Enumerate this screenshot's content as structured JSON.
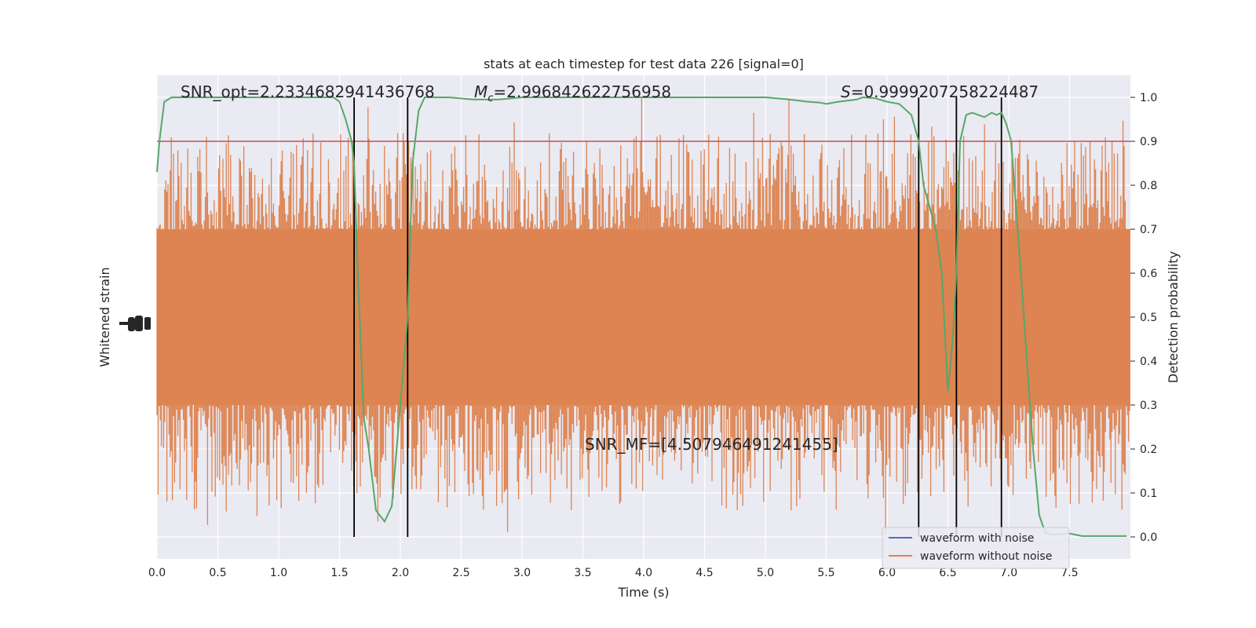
{
  "chart_data": {
    "type": "line",
    "title": "stats at each timestep for test data 226 [signal=0]",
    "xlabel": "Time (s)",
    "ylabel_left": "Whitened strain",
    "ylabel_right": "Detection probability",
    "xlim": [
      0.0,
      8.0
    ],
    "ylim_right": [
      -0.05,
      1.05
    ],
    "x_ticks": [
      "0.0",
      "0.5",
      "1.0",
      "1.5",
      "2.0",
      "2.5",
      "3.0",
      "3.5",
      "4.0",
      "4.5",
      "5.0",
      "5.5",
      "6.0",
      "6.5",
      "7.0",
      "7.5"
    ],
    "y_right_ticks": [
      "0.0",
      "0.1",
      "0.2",
      "0.3",
      "0.4",
      "0.5",
      "0.6",
      "0.7",
      "0.8",
      "0.9",
      "1.0"
    ],
    "grid": true,
    "legend": {
      "placement": "lower-right",
      "entries": [
        {
          "label": "waveform with noise",
          "color": "#4c72b0"
        },
        {
          "label": "waveform without noise",
          "color": "#dd8452"
        }
      ]
    },
    "annotations": {
      "snr_opt": "SNR_opt=2.2334682941436768",
      "mc_symbol": "M",
      "mc_sub": "c",
      "mc_value": "=2.996842622756958",
      "s_symbol": "S",
      "s_value": "=0.9999207258224487",
      "snr_mf": "SNR_MF=[4.507946491241455]"
    },
    "threshold": {
      "value": 0.9,
      "color": "#c44e52"
    },
    "vertical_lines_x": [
      1.62,
      2.06,
      6.26,
      6.57,
      6.94
    ],
    "series": [
      {
        "type": "noise-band",
        "color": "#dd8452",
        "core_range": [
          0.3,
          0.7
        ]
      },
      {
        "type": "line",
        "color": "#55a868",
        "x": [
          0.0,
          0.02,
          0.06,
          0.12,
          0.3,
          0.6,
          0.9,
          1.2,
          1.45,
          1.5,
          1.55,
          1.6,
          1.62,
          1.65,
          1.7,
          1.74,
          1.8,
          1.87,
          1.93,
          2.0,
          2.06,
          2.1,
          2.15,
          2.2,
          2.4,
          2.6,
          2.8,
          3.0,
          3.5,
          4.0,
          4.5,
          5.0,
          5.2,
          5.35,
          5.45,
          5.5,
          5.6,
          5.75,
          5.8,
          5.9,
          6.0,
          6.1,
          6.2,
          6.26,
          6.28,
          6.3,
          6.35,
          6.4,
          6.45,
          6.5,
          6.54,
          6.57,
          6.6,
          6.65,
          6.7,
          6.75,
          6.8,
          6.86,
          6.9,
          6.94,
          6.98,
          7.02,
          7.1,
          7.2,
          7.25,
          7.3,
          7.35,
          7.5,
          7.6,
          7.8,
          7.97
        ],
        "y": [
          0.83,
          0.9,
          0.99,
          1.0,
          1.0,
          1.0,
          1.0,
          1.0,
          1.0,
          0.99,
          0.95,
          0.9,
          0.85,
          0.6,
          0.27,
          0.2,
          0.06,
          0.035,
          0.07,
          0.3,
          0.5,
          0.85,
          0.97,
          1.0,
          1.0,
          0.995,
          0.995,
          1.0,
          1.0,
          1.0,
          1.0,
          1.0,
          0.995,
          0.99,
          0.988,
          0.985,
          0.99,
          0.995,
          1.0,
          0.998,
          0.99,
          0.985,
          0.96,
          0.9,
          0.85,
          0.8,
          0.75,
          0.7,
          0.6,
          0.33,
          0.45,
          0.6,
          0.9,
          0.96,
          0.965,
          0.96,
          0.955,
          0.965,
          0.96,
          0.965,
          0.94,
          0.9,
          0.6,
          0.2,
          0.05,
          0.01,
          0.005,
          0.008,
          0.002,
          0.002,
          0.002
        ]
      }
    ]
  }
}
